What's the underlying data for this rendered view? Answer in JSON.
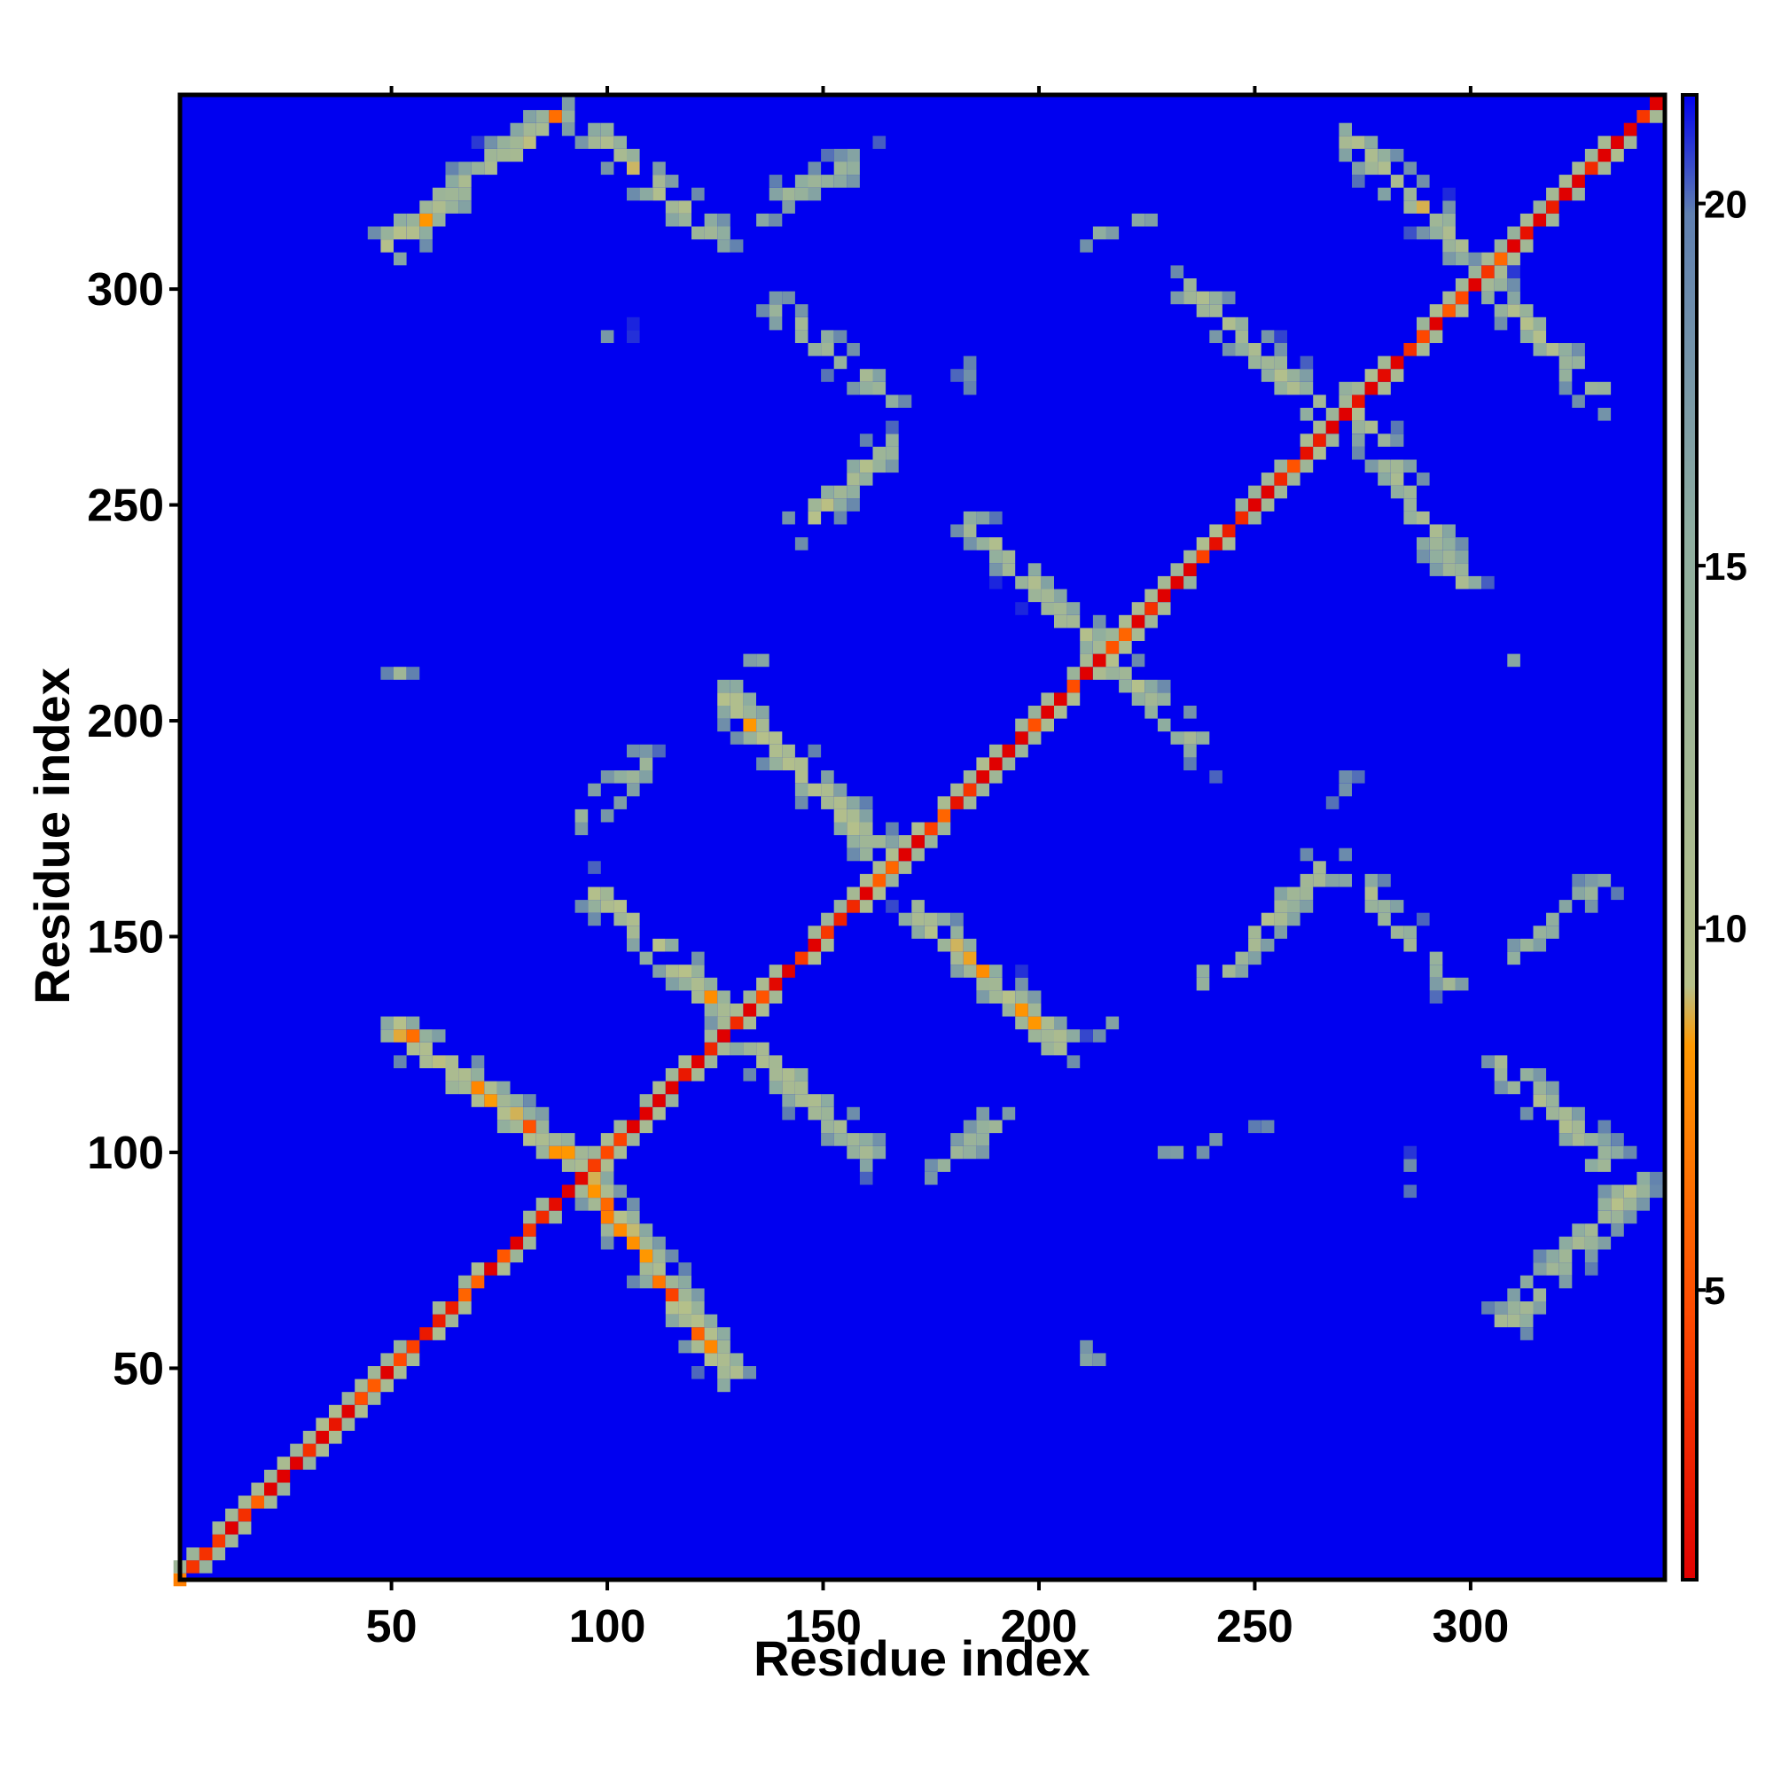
{
  "chart_data": {
    "type": "heatmap",
    "title": "",
    "xlabel": "Residue index",
    "ylabel": "Residue index",
    "xlim": [
      1,
      345
    ],
    "ylim": [
      1,
      345
    ],
    "x_ticks": [
      50,
      100,
      150,
      200,
      250,
      300
    ],
    "y_ticks": [
      50,
      100,
      150,
      200,
      250,
      300
    ],
    "colorbar": {
      "ticks": [
        5,
        10,
        15,
        20
      ],
      "range": [
        1,
        21.5
      ],
      "colors": [
        "#e00000",
        "#ff4a00",
        "#ff9900",
        "#b7c189",
        "#8fae9f",
        "#5f7fb0",
        "#0000f0"
      ],
      "stops": [
        0,
        0.18,
        0.36,
        0.4,
        0.7,
        0.92,
        1
      ]
    },
    "background_color": "#0000f0",
    "grid": false,
    "contact_bands": [
      {
        "from": [
          2,
          2
        ],
        "to": [
          345,
          345
        ],
        "strength": 1.0,
        "width": 4
      },
      {
        "from": [
          52,
          128
        ],
        "to": [
          92,
          98
        ],
        "strength": 0.7,
        "width": 7
      },
      {
        "from": [
          92,
          98
        ],
        "to": [
          128,
          50
        ],
        "strength": 0.7,
        "width": 7
      },
      {
        "from": [
          50,
          310
        ],
        "to": [
          88,
          340
        ],
        "strength": 0.6,
        "width": 7
      },
      {
        "from": [
          98,
          335
        ],
        "to": [
          125,
          312
        ],
        "strength": 0.55,
        "width": 7
      },
      {
        "from": [
          135,
          318
        ],
        "to": [
          160,
          330
        ],
        "strength": 0.45,
        "width": 6
      },
      {
        "from": [
          140,
          295
        ],
        "to": [
          165,
          275
        ],
        "strength": 0.5,
        "width": 6
      },
      {
        "from": [
          145,
          245
        ],
        "to": [
          165,
          263
        ],
        "strength": 0.55,
        "width": 6
      },
      {
        "from": [
          128,
          205
        ],
        "to": [
          165,
          168
        ],
        "strength": 0.6,
        "width": 7
      },
      {
        "from": [
          98,
          160
        ],
        "to": [
          128,
          132
        ],
        "strength": 0.6,
        "width": 7
      },
      {
        "from": [
          132,
          126
        ],
        "to": [
          160,
          100
        ],
        "strength": 0.55,
        "width": 7
      },
      {
        "from": [
          178,
          95
        ],
        "to": [
          190,
          108
        ],
        "strength": 0.5,
        "width": 6
      },
      {
        "from": [
          95,
          178
        ],
        "to": [
          108,
          190
        ],
        "strength": 0.5,
        "width": 6
      },
      {
        "from": [
          172,
          155
        ],
        "to": [
          205,
          125
        ],
        "strength": 0.6,
        "width": 7
      },
      {
        "from": [
          185,
          245
        ],
        "to": [
          205,
          225
        ],
        "strength": 0.55,
        "width": 6
      },
      {
        "from": [
          205,
          225
        ],
        "to": [
          240,
          192
        ],
        "strength": 0.55,
        "width": 6
      },
      {
        "from": [
          240,
          140
        ],
        "to": [
          265,
          165
        ],
        "strength": 0.55,
        "width": 7
      },
      {
        "from": [
          272,
          165
        ],
        "to": [
          295,
          140
        ],
        "strength": 0.5,
        "width": 6
      },
      {
        "from": [
          235,
          300
        ],
        "to": [
          265,
          272
        ],
        "strength": 0.55,
        "width": 7
      },
      {
        "from": [
          272,
          275
        ],
        "to": [
          298,
          232
        ],
        "strength": 0.55,
        "width": 7
      },
      {
        "from": [
          272,
          335
        ],
        "to": [
          298,
          310
        ],
        "strength": 0.55,
        "width": 7
      },
      {
        "from": [
          305,
          300
        ],
        "to": [
          330,
          275
        ],
        "strength": 0.5,
        "width": 7
      },
      {
        "from": [
          308,
          120
        ],
        "to": [
          335,
          95
        ],
        "strength": 0.55,
        "width": 7
      },
      {
        "from": [
          308,
          60
        ],
        "to": [
          338,
          92
        ],
        "strength": 0.55,
        "width": 7
      },
      {
        "from": [
          310,
          145
        ],
        "to": [
          330,
          162
        ],
        "strength": 0.4,
        "width": 6
      },
      {
        "from": [
          210,
          312
        ],
        "to": [
          228,
          318
        ],
        "strength": 0.35,
        "width": 5
      },
      {
        "from": [
          230,
          100
        ],
        "to": [
          260,
          105
        ],
        "strength": 0.3,
        "width": 4
      }
    ],
    "contact_blobs": [
      {
        "x": 52,
        "y": 212,
        "r": 4,
        "strength": 0.55
      },
      {
        "x": 212,
        "y": 53,
        "r": 4,
        "strength": 0.5
      },
      {
        "x": 215,
        "y": 130,
        "r": 5,
        "strength": 0.45
      },
      {
        "x": 135,
        "y": 215,
        "r": 5,
        "strength": 0.45
      },
      {
        "x": 215,
        "y": 220,
        "r": 6,
        "strength": 0.4
      },
      {
        "x": 310,
        "y": 215,
        "r": 5,
        "strength": 0.4
      },
      {
        "x": 285,
        "y": 95,
        "r": 6,
        "strength": 0.3
      },
      {
        "x": 100,
        "y": 290,
        "r": 7,
        "strength": 0.3
      },
      {
        "x": 120,
        "y": 270,
        "r": 5,
        "strength": 0.25
      },
      {
        "x": 270,
        "y": 185,
        "r": 7,
        "strength": 0.25
      },
      {
        "x": 185,
        "y": 280,
        "r": 6,
        "strength": 0.25
      }
    ]
  }
}
